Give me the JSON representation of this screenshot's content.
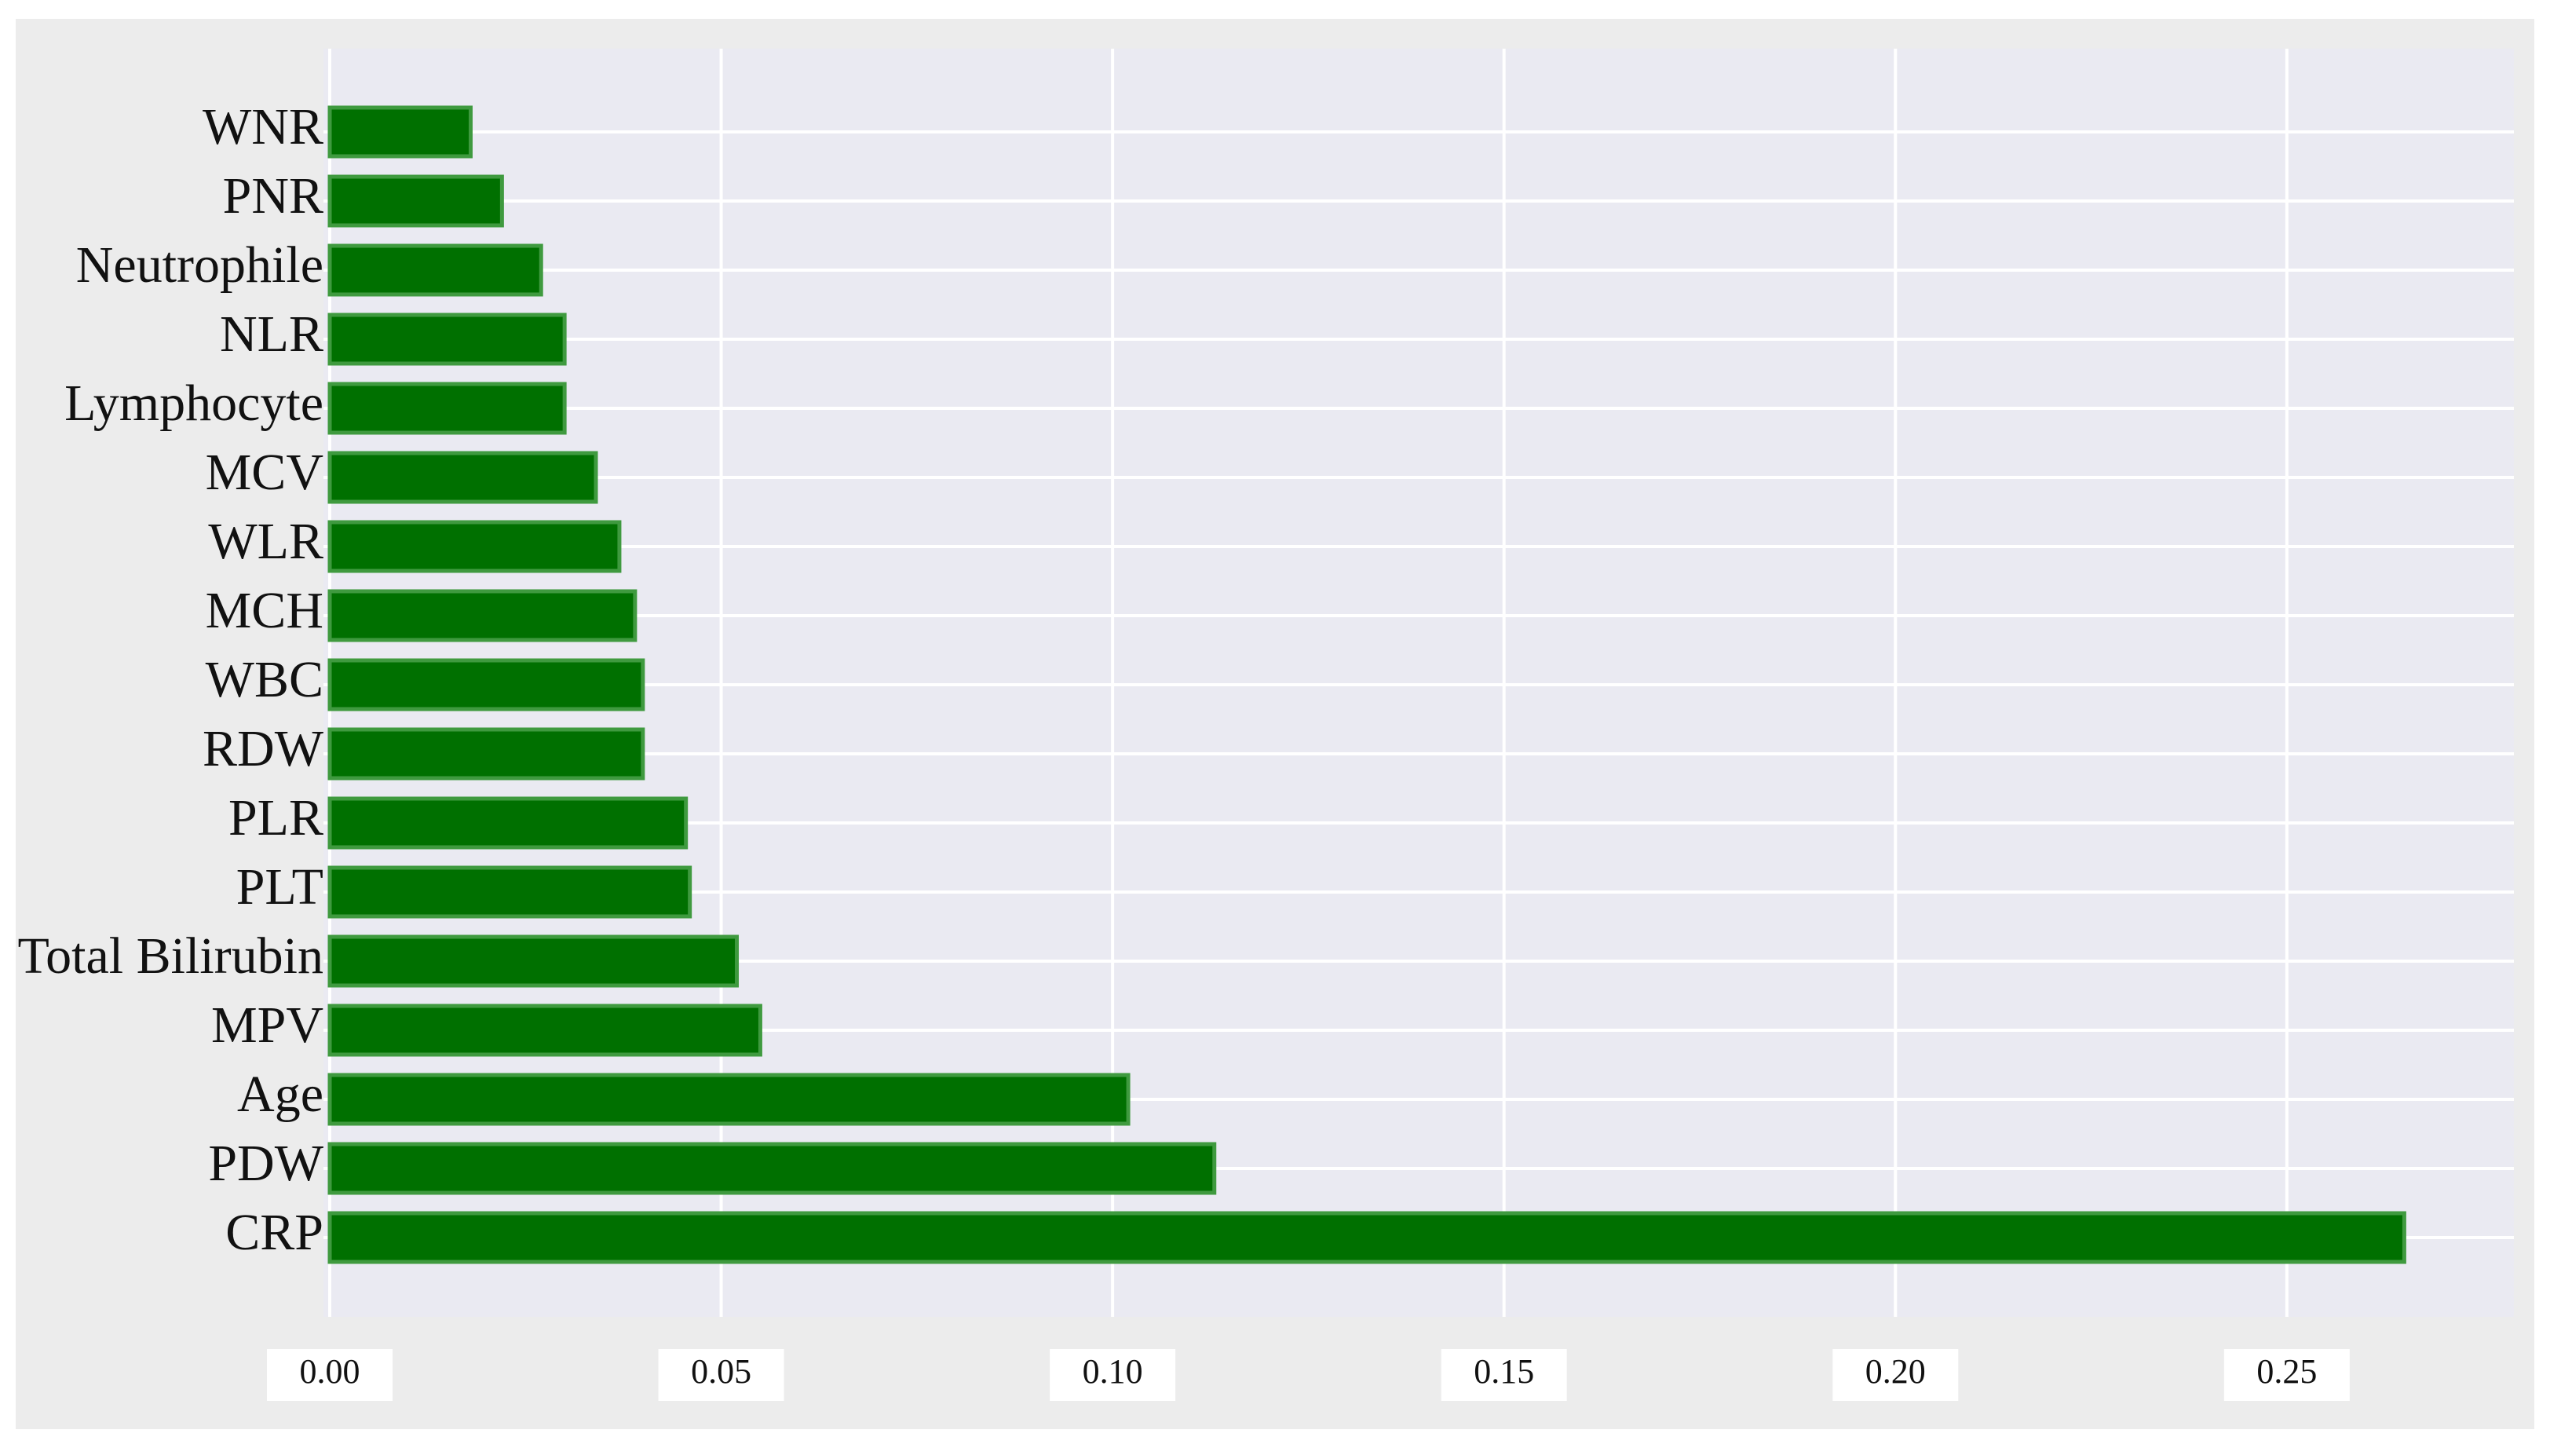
{
  "chart_data": {
    "type": "barh",
    "categories": [
      "WNR",
      "PNR",
      "Neutrophile",
      "NLR",
      "Lymphocyte",
      "MCV",
      "WLR",
      "MCH",
      "WBC",
      "RDW",
      "PLR",
      "PLT",
      "Total Bilirubin",
      "MPV",
      "Age",
      "PDW",
      "CRP"
    ],
    "values": [
      0.018,
      0.022,
      0.027,
      0.03,
      0.03,
      0.034,
      0.037,
      0.039,
      0.04,
      0.04,
      0.0455,
      0.046,
      0.052,
      0.055,
      0.102,
      0.113,
      0.265
    ],
    "color": "#007000",
    "xlim": [
      0,
      0.279
    ],
    "xticks": [
      {
        "value": 0,
        "label": "0.00"
      },
      {
        "value": 0.05,
        "label": "0.05"
      },
      {
        "value": 0.1,
        "label": "0.10"
      },
      {
        "value": 0.15,
        "label": "0.15"
      },
      {
        "value": 0.2,
        "label": "0.20"
      },
      {
        "value": 0.25,
        "label": "0.25"
      }
    ],
    "grid": true
  }
}
